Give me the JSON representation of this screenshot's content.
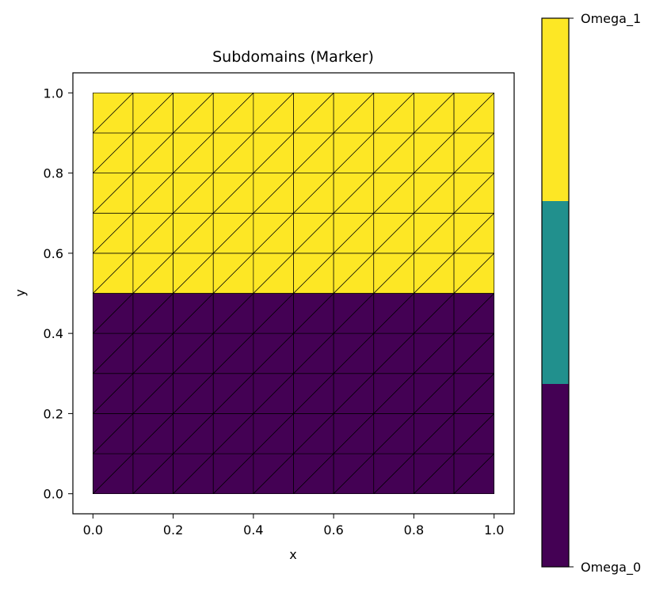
{
  "chart_data": {
    "type": "heatmap",
    "title": "Subdomains (Marker)",
    "xlabel": "x",
    "ylabel": "y",
    "xlim": [
      -0.05,
      1.05
    ],
    "ylim": [
      -0.05,
      1.05
    ],
    "xticks": [
      "0.0",
      "0.2",
      "0.4",
      "0.6",
      "0.8",
      "1.0"
    ],
    "yticks": [
      "0.0",
      "0.2",
      "0.4",
      "0.6",
      "0.8",
      "1.0"
    ],
    "grid": false,
    "mesh": {
      "nx": 10,
      "ny": 10,
      "x_range": [
        0.0,
        1.0
      ],
      "y_range": [
        0.0,
        1.0
      ],
      "element": "triangle",
      "edge_color": "#000000"
    },
    "regions": [
      {
        "marker": "Omega_0",
        "y_range": [
          0.0,
          0.5
        ],
        "color": "#440154"
      },
      {
        "marker": "Omega_1",
        "y_range": [
          0.5,
          1.0
        ],
        "color": "#fde725"
      }
    ],
    "colorbar": {
      "segments": [
        {
          "color": "#440154"
        },
        {
          "color": "#21908d"
        },
        {
          "color": "#fde725"
        }
      ],
      "tick_labels": [
        "Omega_0",
        "Omega_1"
      ]
    }
  }
}
